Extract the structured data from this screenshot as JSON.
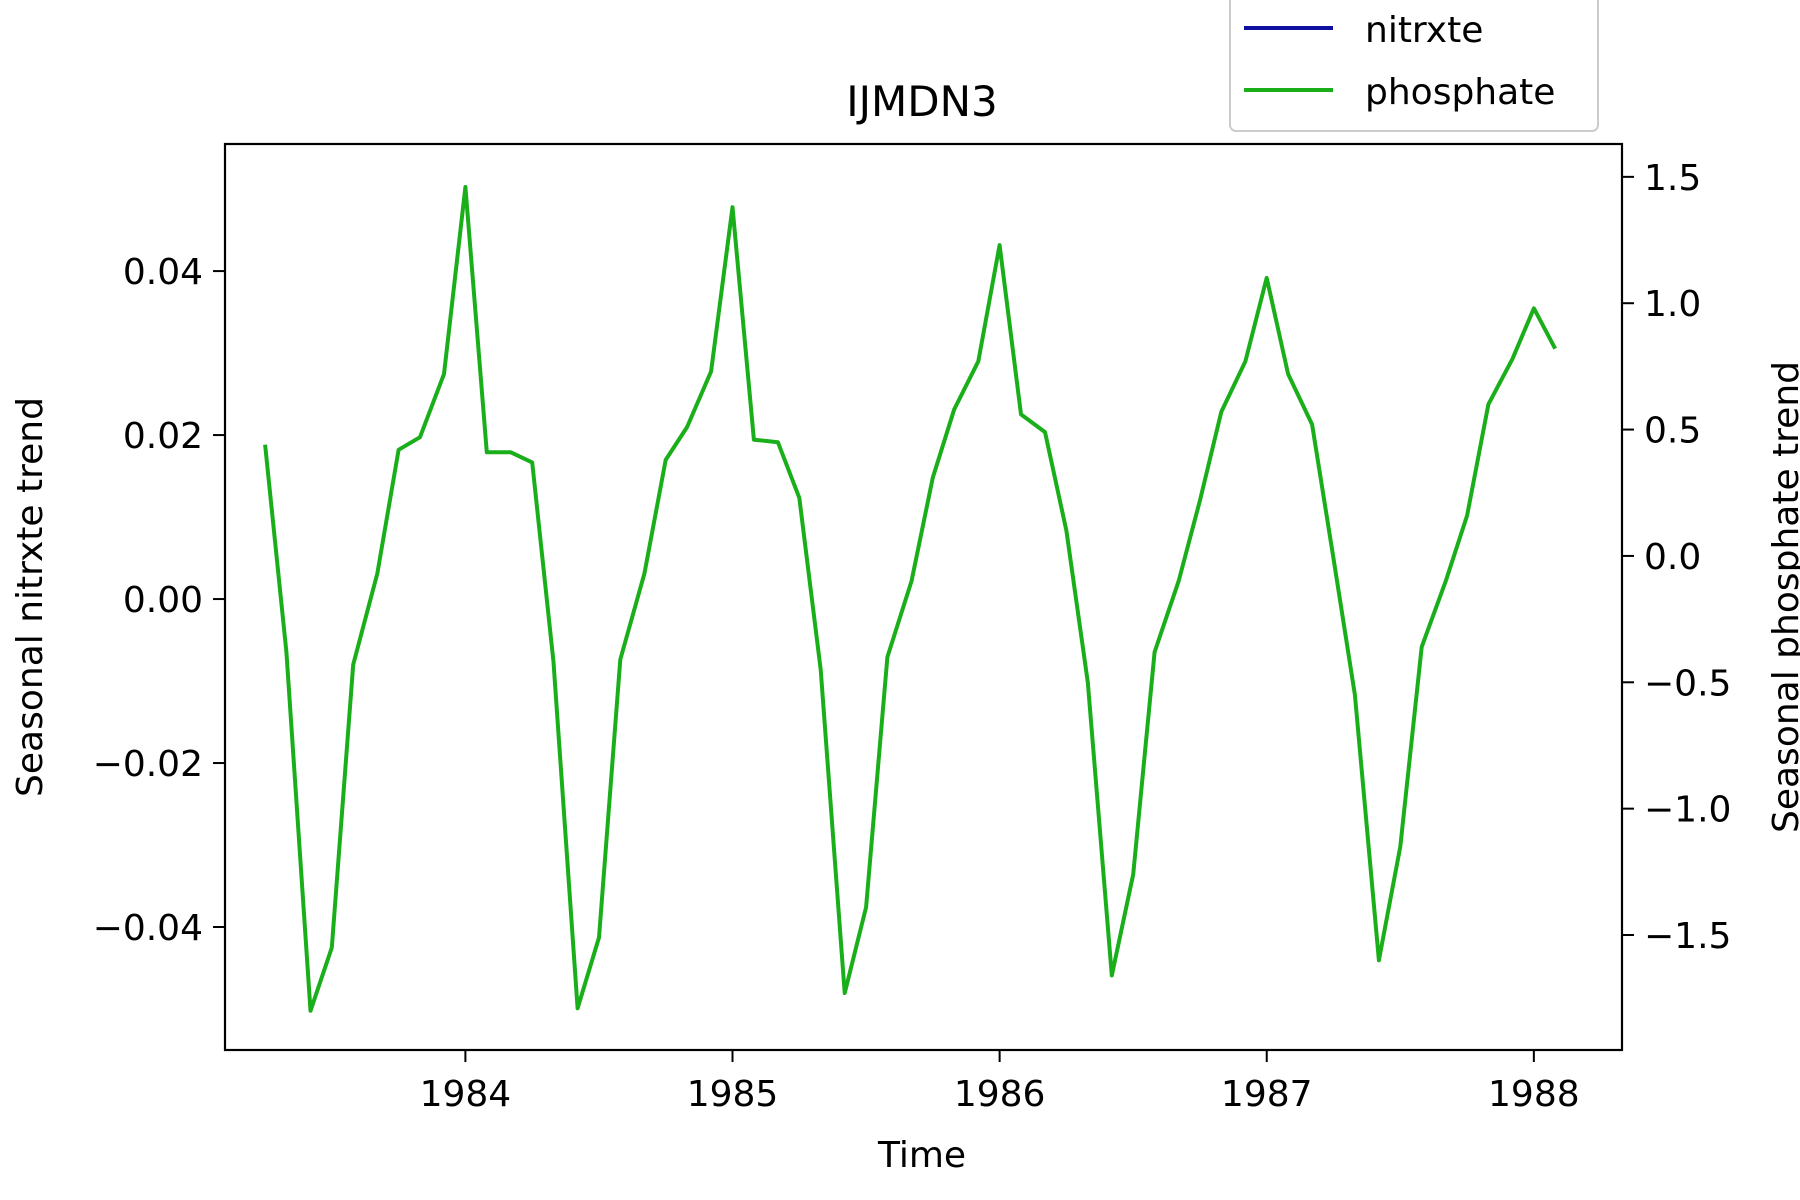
{
  "chart_data": {
    "type": "line",
    "title": "IJMDN3",
    "xlabel": "Time",
    "ylabel_left": "Seasonal nitrxte trend",
    "ylabel_right": "Seasonal phosphate trend",
    "xlim": [
      1983.1,
      1988.33
    ],
    "ylim_left": [
      -0.055,
      0.0555
    ],
    "ylim_right": [
      -1.955,
      1.63
    ],
    "x_ticks": [
      1984,
      1985,
      1986,
      1987,
      1988
    ],
    "x_tick_labels": [
      "1984",
      "1985",
      "1986",
      "1987",
      "1988"
    ],
    "y_left_ticks": [
      0.04,
      0.02,
      0.0,
      -0.02,
      -0.04
    ],
    "y_left_tick_labels": [
      "0.04",
      "0.02",
      "0.00",
      "−0.02",
      "−0.04"
    ],
    "y_right_ticks": [
      1.5,
      1.0,
      0.5,
      0.0,
      -0.5,
      -1.0,
      -1.5
    ],
    "y_right_tick_labels": [
      "1.5",
      "1.0",
      "0.5",
      "0.0",
      "−0.5",
      "−1.0",
      "−1.5"
    ],
    "grid": false,
    "legend_position": "top-right",
    "series": [
      {
        "name": "nitrxte",
        "color": "#1010a0",
        "axis": "left",
        "x": [],
        "y": []
      },
      {
        "name": "phosphate",
        "color": "#1aaf1a",
        "axis": "right",
        "x": [
          1983.25,
          1983.33,
          1983.42,
          1983.5,
          1983.58,
          1983.67,
          1983.75,
          1983.83,
          1983.92,
          1984.0,
          1984.08,
          1984.17,
          1984.25,
          1984.33,
          1984.42,
          1984.5,
          1984.58,
          1984.67,
          1984.75,
          1984.83,
          1984.92,
          1985.0,
          1985.08,
          1985.17,
          1985.25,
          1985.33,
          1985.42,
          1985.5,
          1985.58,
          1985.67,
          1985.75,
          1985.83,
          1985.92,
          1986.0,
          1986.08,
          1986.17,
          1986.25,
          1986.33,
          1986.42,
          1986.5,
          1986.58,
          1986.67,
          1986.75,
          1986.83,
          1986.92,
          1987.0,
          1987.08,
          1987.17,
          1987.25,
          1987.33,
          1987.42,
          1987.5,
          1987.58,
          1987.67,
          1987.75,
          1987.83,
          1987.92,
          1988.0,
          1988.08
        ],
        "y": [
          0.44,
          -0.38,
          -1.8,
          -1.55,
          -0.43,
          -0.07,
          0.42,
          0.47,
          0.72,
          1.46,
          0.41,
          0.41,
          0.37,
          -0.42,
          -1.79,
          -1.51,
          -0.41,
          -0.07,
          0.38,
          0.51,
          0.73,
          1.38,
          0.46,
          0.45,
          0.23,
          -0.45,
          -1.73,
          -1.39,
          -0.4,
          -0.1,
          0.31,
          0.58,
          0.77,
          1.23,
          0.56,
          0.49,
          0.1,
          -0.5,
          -1.66,
          -1.26,
          -0.38,
          -0.1,
          0.22,
          0.57,
          0.77,
          1.1,
          0.72,
          0.52,
          -0.01,
          -0.55,
          -1.6,
          -1.15,
          -0.36,
          -0.1,
          0.16,
          0.6,
          0.78,
          0.98,
          0.82
        ]
      }
    ]
  }
}
